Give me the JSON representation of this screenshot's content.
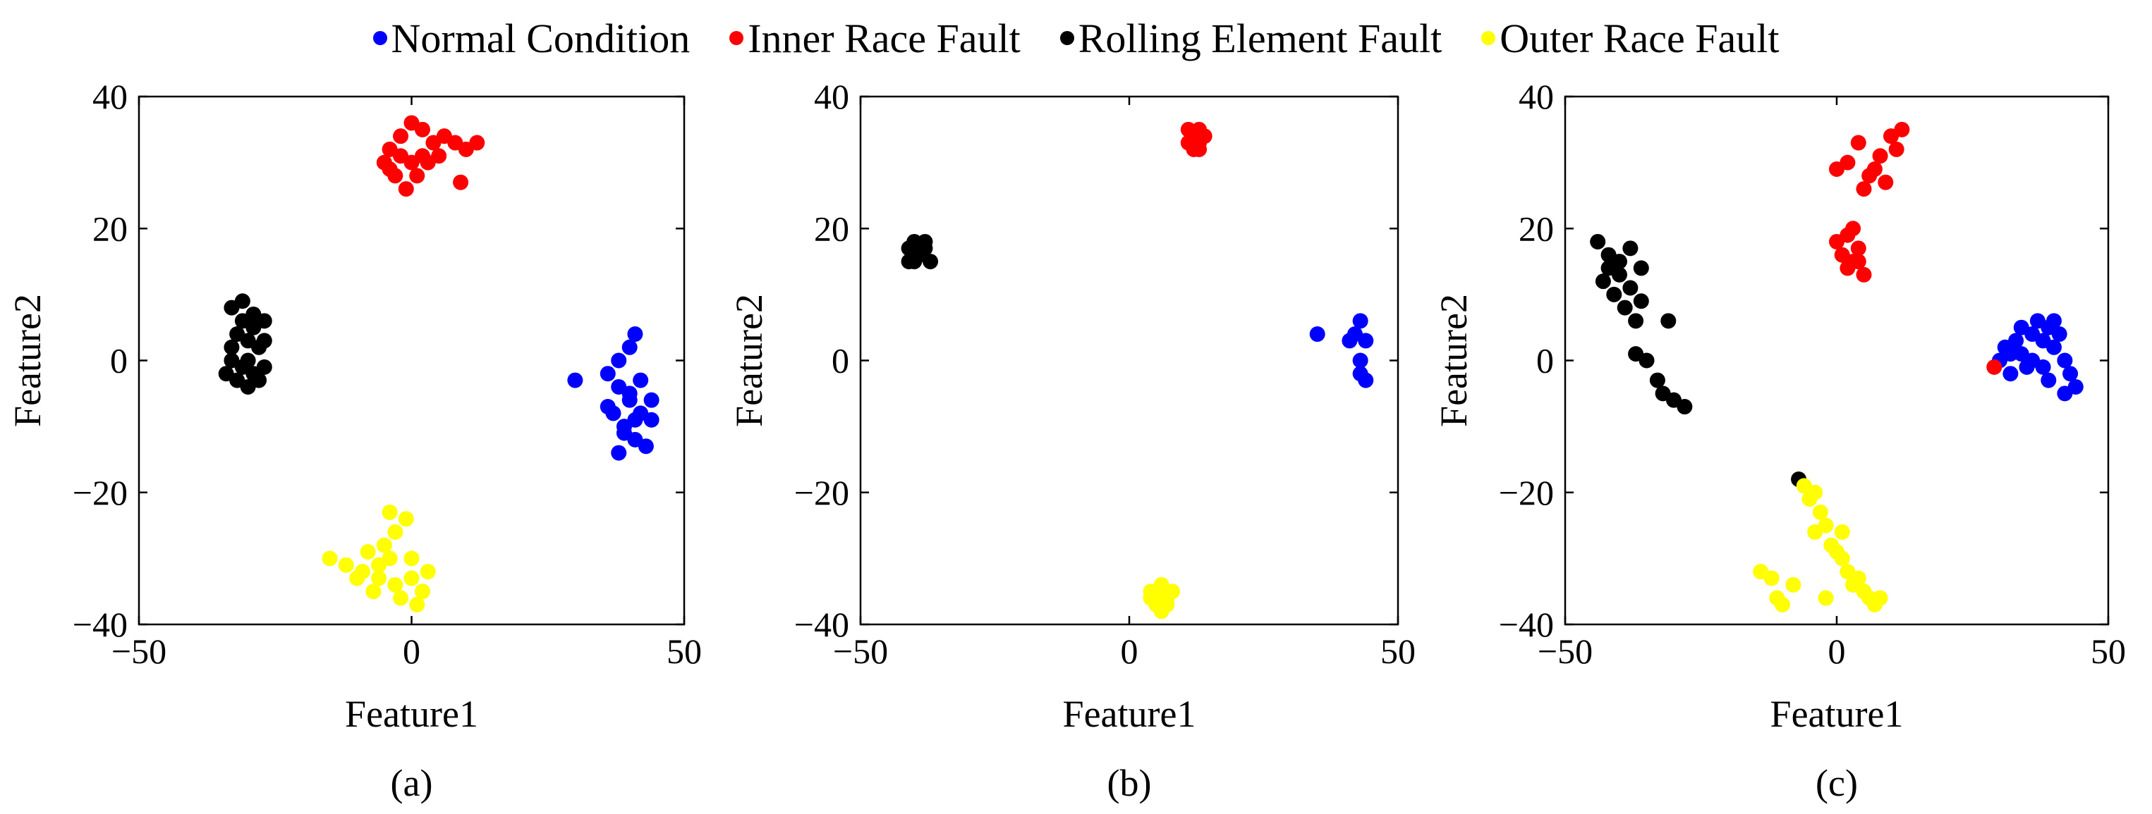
{
  "legend": {
    "normal": "Normal Condition",
    "inner": "Inner Race Fault",
    "rolling": "Rolling Element Fault",
    "outer": "Outer Race Fault"
  },
  "colors": {
    "normal": "#0000ff",
    "inner": "#ff0000",
    "rolling": "#000000",
    "outer": "#ffff00"
  },
  "chart_data": [
    {
      "type": "scatter",
      "panel_label": "(a)",
      "xlabel": "Feature1",
      "ylabel": "Feature2",
      "xlim": [
        -50,
        50
      ],
      "ylim": [
        -40,
        40
      ],
      "xticks": [
        -50,
        0,
        50
      ],
      "yticks": [
        -40,
        -20,
        0,
        20,
        40
      ],
      "tick_labels": {
        "x": [
          "−50",
          "0",
          "50"
        ],
        "y": [
          "−40",
          "−20",
          "0",
          "20",
          "40"
        ]
      },
      "series": [
        {
          "key": "normal",
          "name": "Normal Condition",
          "points": [
            [
              30,
              -3
            ],
            [
              36,
              -2
            ],
            [
              38,
              0
            ],
            [
              40,
              2
            ],
            [
              41,
              4
            ],
            [
              38,
              -4
            ],
            [
              40,
              -6
            ],
            [
              42,
              -8
            ],
            [
              44,
              -9
            ],
            [
              37,
              -8
            ],
            [
              39,
              -10
            ],
            [
              41,
              -12
            ],
            [
              43,
              -13
            ],
            [
              38,
              -14
            ],
            [
              40,
              -5
            ],
            [
              42,
              -3
            ],
            [
              36,
              -7
            ],
            [
              44,
              -6
            ],
            [
              41,
              -9
            ],
            [
              39,
              -11
            ]
          ]
        },
        {
          "key": "inner",
          "name": "Inner Race Fault",
          "points": [
            [
              -5,
              30
            ],
            [
              -4,
              32
            ],
            [
              -2,
              34
            ],
            [
              0,
              36
            ],
            [
              2,
              35
            ],
            [
              4,
              33
            ],
            [
              6,
              34
            ],
            [
              8,
              33
            ],
            [
              10,
              32
            ],
            [
              12,
              33
            ],
            [
              -3,
              28
            ],
            [
              -1,
              26
            ],
            [
              1,
              28
            ],
            [
              3,
              30
            ],
            [
              5,
              31
            ],
            [
              -2,
              31
            ],
            [
              0,
              30
            ],
            [
              2,
              31
            ],
            [
              9,
              27
            ],
            [
              -4,
              29
            ]
          ]
        },
        {
          "key": "rolling",
          "name": "Rolling Element Fault",
          "points": [
            [
              -33,
              8
            ],
            [
              -31,
              9
            ],
            [
              -29,
              7
            ],
            [
              -27,
              6
            ],
            [
              -32,
              4
            ],
            [
              -30,
              3
            ],
            [
              -28,
              2
            ],
            [
              -33,
              0
            ],
            [
              -31,
              -1
            ],
            [
              -29,
              -2
            ],
            [
              -27,
              -1
            ],
            [
              -34,
              -2
            ],
            [
              -32,
              -3
            ],
            [
              -30,
              -4
            ],
            [
              -28,
              -3
            ],
            [
              -31,
              6
            ],
            [
              -29,
              5
            ],
            [
              -33,
              2
            ],
            [
              -27,
              3
            ],
            [
              -30,
              0
            ]
          ]
        },
        {
          "key": "outer",
          "name": "Outer Race Fault",
          "points": [
            [
              -15,
              -30
            ],
            [
              -12,
              -31
            ],
            [
              -9,
              -32
            ],
            [
              -6,
              -33
            ],
            [
              -3,
              -34
            ],
            [
              0,
              -33
            ],
            [
              3,
              -32
            ],
            [
              -5,
              -28
            ],
            [
              -3,
              -26
            ],
            [
              -4,
              -23
            ],
            [
              -1,
              -24
            ],
            [
              -8,
              -29
            ],
            [
              -10,
              -33
            ],
            [
              -7,
              -35
            ],
            [
              -2,
              -36
            ],
            [
              1,
              -37
            ],
            [
              -6,
              -31
            ],
            [
              -4,
              -30
            ],
            [
              0,
              -30
            ],
            [
              2,
              -35
            ]
          ]
        }
      ]
    },
    {
      "type": "scatter",
      "panel_label": "(b)",
      "xlabel": "Feature1",
      "ylabel": "Feature2",
      "xlim": [
        -50,
        50
      ],
      "ylim": [
        -40,
        40
      ],
      "xticks": [
        -50,
        0,
        50
      ],
      "yticks": [
        -40,
        -20,
        0,
        20,
        40
      ],
      "tick_labels": {
        "x": [
          "−50",
          "0",
          "50"
        ],
        "y": [
          "−40",
          "−20",
          "0",
          "20",
          "40"
        ]
      },
      "series": [
        {
          "key": "normal",
          "name": "Normal Condition",
          "points": [
            [
              35,
              4
            ],
            [
              41,
              3
            ],
            [
              43,
              6
            ],
            [
              44,
              3
            ],
            [
              43,
              0
            ],
            [
              44,
              -3
            ],
            [
              43,
              -2
            ],
            [
              42,
              4
            ]
          ]
        },
        {
          "key": "inner",
          "name": "Inner Race Fault",
          "points": [
            [
              11,
              35
            ],
            [
              12,
              34
            ],
            [
              13,
              33
            ],
            [
              12,
              32
            ],
            [
              13,
              35
            ],
            [
              14,
              34
            ],
            [
              11,
              33
            ],
            [
              13,
              32
            ]
          ]
        },
        {
          "key": "rolling",
          "name": "Rolling Element Fault",
          "points": [
            [
              -41,
              17
            ],
            [
              -40,
              15
            ],
            [
              -39,
              16
            ],
            [
              -38,
              18
            ],
            [
              -37,
              15
            ],
            [
              -38,
              17
            ],
            [
              -40,
              18
            ],
            [
              -41,
              15
            ],
            [
              -39,
              17
            ]
          ]
        },
        {
          "key": "outer",
          "name": "Outer Race Fault",
          "points": [
            [
              4,
              -36
            ],
            [
              5,
              -35
            ],
            [
              6,
              -34
            ],
            [
              7,
              -36
            ],
            [
              8,
              -35
            ],
            [
              5,
              -37
            ],
            [
              6,
              -38
            ],
            [
              7,
              -37
            ],
            [
              4,
              -35
            ]
          ]
        }
      ]
    },
    {
      "type": "scatter",
      "panel_label": "(c)",
      "xlabel": "Feature1",
      "ylabel": "Feature2",
      "xlim": [
        -50,
        50
      ],
      "ylim": [
        -40,
        40
      ],
      "xticks": [
        -50,
        0,
        50
      ],
      "yticks": [
        -40,
        -20,
        0,
        20,
        40
      ],
      "tick_labels": {
        "x": [
          "−50",
          "0",
          "50"
        ],
        "y": [
          "−40",
          "−20",
          "0",
          "20",
          "40"
        ]
      },
      "series": [
        {
          "key": "normal",
          "name": "Normal Condition",
          "points": [
            [
              30,
              0
            ],
            [
              31,
              2
            ],
            [
              32,
              -2
            ],
            [
              33,
              3
            ],
            [
              34,
              1
            ],
            [
              35,
              -1
            ],
            [
              36,
              4
            ],
            [
              37,
              6
            ],
            [
              38,
              3
            ],
            [
              39,
              5
            ],
            [
              40,
              2
            ],
            [
              41,
              4
            ],
            [
              42,
              0
            ],
            [
              43,
              -2
            ],
            [
              44,
              -4
            ],
            [
              42,
              -5
            ],
            [
              36,
              0
            ],
            [
              38,
              -1
            ],
            [
              40,
              6
            ],
            [
              34,
              5
            ],
            [
              32,
              1
            ],
            [
              39,
              -3
            ]
          ]
        },
        {
          "key": "inner",
          "name": "Inner Race Fault",
          "points": [
            [
              0,
              29
            ],
            [
              2,
              30
            ],
            [
              4,
              33
            ],
            [
              6,
              28
            ],
            [
              8,
              31
            ],
            [
              10,
              34
            ],
            [
              12,
              35
            ],
            [
              9,
              27
            ],
            [
              7,
              29
            ],
            [
              11,
              32
            ],
            [
              5,
              26
            ],
            [
              0,
              18
            ],
            [
              1,
              16
            ],
            [
              2,
              14
            ],
            [
              3,
              20
            ],
            [
              4,
              17
            ],
            [
              5,
              13
            ],
            [
              3,
              15
            ],
            [
              2,
              19
            ],
            [
              4,
              15
            ],
            [
              29,
              -1
            ]
          ]
        },
        {
          "key": "rolling",
          "name": "Rolling Element Fault",
          "points": [
            [
              -44,
              18
            ],
            [
              -42,
              16
            ],
            [
              -40,
              15
            ],
            [
              -38,
              17
            ],
            [
              -36,
              14
            ],
            [
              -43,
              12
            ],
            [
              -41,
              10
            ],
            [
              -39,
              8
            ],
            [
              -37,
              6
            ],
            [
              -40,
              13
            ],
            [
              -38,
              11
            ],
            [
              -36,
              9
            ],
            [
              -37,
              1
            ],
            [
              -35,
              0
            ],
            [
              -33,
              -3
            ],
            [
              -32,
              -5
            ],
            [
              -30,
              -6
            ],
            [
              -28,
              -7
            ],
            [
              -31,
              6
            ],
            [
              -42,
              14
            ],
            [
              -7,
              -18
            ]
          ]
        },
        {
          "key": "outer",
          "name": "Outer Race Fault",
          "points": [
            [
              -6,
              -19
            ],
            [
              -5,
              -21
            ],
            [
              -4,
              -20
            ],
            [
              -3,
              -23
            ],
            [
              -2,
              -25
            ],
            [
              -1,
              -28
            ],
            [
              0,
              -29
            ],
            [
              1,
              -30
            ],
            [
              2,
              -32
            ],
            [
              3,
              -34
            ],
            [
              4,
              -33
            ],
            [
              5,
              -35
            ],
            [
              6,
              -36
            ],
            [
              7,
              -37
            ],
            [
              8,
              -36
            ],
            [
              -14,
              -32
            ],
            [
              -12,
              -33
            ],
            [
              -11,
              -36
            ],
            [
              -10,
              -37
            ],
            [
              -8,
              -34
            ],
            [
              -2,
              -36
            ],
            [
              -4,
              -26
            ],
            [
              1,
              -26
            ]
          ]
        }
      ]
    }
  ]
}
